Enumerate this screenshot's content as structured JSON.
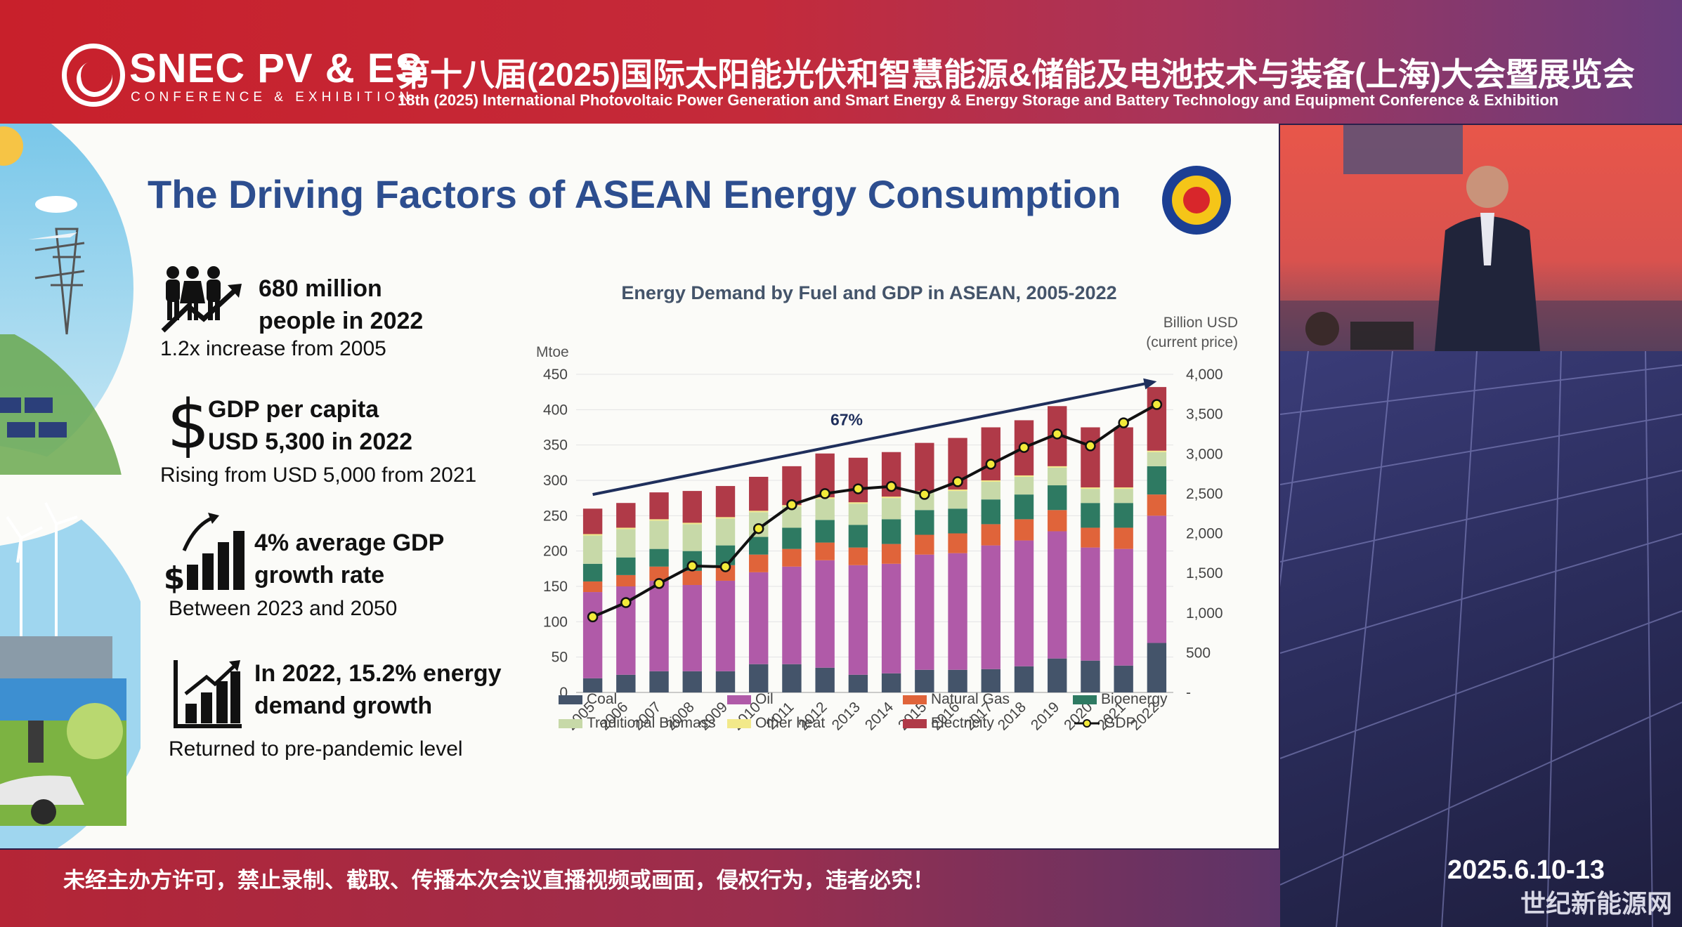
{
  "header": {
    "brand": "SNEC PV & ES",
    "brand_sub": "CONFERENCE & EXHIBITION",
    "title_cn": "第十八届(2025)国际太阳能光伏和智慧能源&储能及电池技术与装备(上海)大会暨展览会",
    "title_en": "18th (2025) International Photovoltaic Power Generation and Smart Energy & Energy Storage and Battery Technology and Equipment Conference & Exhibition"
  },
  "slide": {
    "title": "The Driving Factors of ASEAN Energy Consumption",
    "facts": [
      {
        "icon": "people-growth-icon",
        "line1": "680 million",
        "line2": "people in 2022",
        "sub": "1.2x increase from 2005"
      },
      {
        "icon": "dollar-icon",
        "line1": "GDP per capita",
        "line2": "USD 5,300 in 2022",
        "sub": "Rising from USD 5,000 from 2021"
      },
      {
        "icon": "growth-bars-icon",
        "line1": "4% average GDP",
        "line2": "growth rate",
        "sub": "Between 2023 and 2050"
      },
      {
        "icon": "bar-chart-icon",
        "line1": "In 2022, 15.2% energy",
        "line2": "demand growth",
        "sub": "Returned to pre-pandemic level"
      }
    ]
  },
  "chart_data": {
    "type": "bar",
    "stacked": true,
    "title": "Energy Demand by Fuel and GDP in ASEAN, 2005-2022",
    "ylabel": "Mtoe",
    "y2label_line1": "Billion USD",
    "y2label_line2": "(current price)",
    "ylim": [
      0,
      450
    ],
    "yticks": [
      "0",
      "50",
      "100",
      "150",
      "200",
      "250",
      "300",
      "350",
      "400",
      "450"
    ],
    "y2lim": [
      0,
      4000
    ],
    "y2ticks": [
      "-",
      "500",
      "1,000",
      "1,500",
      "2,000",
      "2,500",
      "3,000",
      "3,500",
      "4,000"
    ],
    "categories": [
      "2005",
      "2006",
      "2007",
      "2008",
      "2009",
      "2010",
      "2011",
      "2012",
      "2013",
      "2014",
      "2015",
      "2016",
      "2017",
      "2018",
      "2019",
      "2020",
      "2021",
      "2022"
    ],
    "series": [
      {
        "name": "Coal",
        "color": "#44546a",
        "values": [
          20,
          25,
          30,
          30,
          30,
          40,
          40,
          35,
          25,
          27,
          32,
          32,
          33,
          37,
          48,
          45,
          38,
          70
        ]
      },
      {
        "name": "Oil",
        "color": "#b05aa8",
        "values": [
          122,
          125,
          128,
          122,
          128,
          130,
          138,
          152,
          155,
          155,
          163,
          165,
          175,
          178,
          180,
          160,
          165,
          180
        ]
      },
      {
        "name": "Natural Gas",
        "color": "#e0643a",
        "values": [
          15,
          16,
          20,
          20,
          22,
          25,
          25,
          25,
          25,
          28,
          28,
          28,
          30,
          30,
          30,
          28,
          30,
          30
        ]
      },
      {
        "name": "Bioenergy",
        "color": "#2e7a62",
        "values": [
          25,
          25,
          25,
          28,
          28,
          25,
          30,
          32,
          32,
          35,
          35,
          35,
          35,
          35,
          35,
          35,
          35,
          40
        ]
      },
      {
        "name": "Traditional Biomass",
        "color": "#c7d9a8",
        "values": [
          40,
          40,
          40,
          38,
          38,
          35,
          30,
          30,
          30,
          30,
          25,
          25,
          25,
          25,
          25,
          20,
          20,
          20
        ]
      },
      {
        "name": "Other heat",
        "color": "#f2e98a",
        "values": [
          2,
          2,
          2,
          2,
          2,
          2,
          2,
          2,
          2,
          2,
          2,
          2,
          2,
          2,
          2,
          2,
          2,
          2
        ]
      },
      {
        "name": "Electricity",
        "color": "#b03a48",
        "values": [
          36,
          35,
          38,
          45,
          44,
          48,
          55,
          62,
          63,
          63,
          68,
          73,
          75,
          78,
          85,
          85,
          85,
          90
        ]
      }
    ],
    "line": {
      "name": "GDP",
      "axis": "right",
      "color": "#111111",
      "marker": "#f2ea3a",
      "values": [
        950,
        1130,
        1370,
        1590,
        1580,
        2060,
        2360,
        2500,
        2560,
        2590,
        2490,
        2650,
        2870,
        3080,
        3250,
        3100,
        3390,
        3620
      ]
    },
    "trend": {
      "label": "67%",
      "from_year": "2005",
      "from_value": 280,
      "to_year": "2022",
      "to_value": 440
    },
    "legend_position": "bottom"
  },
  "footer": {
    "notice": "未经主办方许可，禁止录制、截取、传播本次会议直播视频或画面，侵权行为，违者必究！",
    "date": "2025.6.10-13",
    "watermark": "世纪新能源网"
  },
  "colors": {
    "banner_red": "#c8202b",
    "title_blue": "#2d4e8f",
    "trend_navy": "#1f2f5c"
  }
}
